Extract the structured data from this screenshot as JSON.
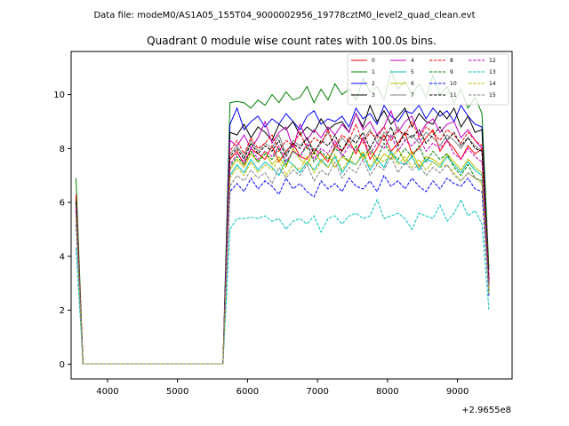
{
  "suptitle": "Data file: modeM0/AS1A05_155T04_9000002956_19778cztM0_level2_quad_clean.evt",
  "chart_data": {
    "type": "line",
    "title": "Quadrant 0 module wise count rates with 100.0s bins.",
    "xlabel": "",
    "ylabel": "",
    "x_offset_label": "+2.9655e8",
    "xlim": [
      3480,
      9780
    ],
    "ylim": [
      -0.55,
      11.6
    ],
    "xticks": [
      4000,
      5000,
      6000,
      7000,
      8000,
      9000
    ],
    "yticks": [
      0,
      2,
      4,
      6,
      8,
      10
    ],
    "legend_position": "top-right",
    "legend_columns": 4,
    "x": [
      3550,
      3650,
      3750,
      3850,
      3950,
      4050,
      4150,
      4250,
      4350,
      4450,
      4550,
      4650,
      4750,
      4850,
      4950,
      5050,
      5150,
      5250,
      5350,
      5450,
      5550,
      5650,
      5750,
      5850,
      5950,
      6050,
      6150,
      6250,
      6350,
      6450,
      6550,
      6650,
      6750,
      6850,
      6950,
      7050,
      7150,
      7250,
      7350,
      7450,
      7550,
      7650,
      7750,
      7850,
      7950,
      8050,
      8150,
      8250,
      8350,
      8450,
      8550,
      8650,
      8750,
      8850,
      8950,
      9050,
      9150,
      9250,
      9350,
      9450
    ],
    "series": [
      {
        "name": "0",
        "color": "#ff0000",
        "dash": false,
        "values": [
          6.2,
          0.01,
          0.01,
          0.01,
          0.01,
          0.01,
          0.01,
          0.01,
          0.01,
          0.01,
          0.01,
          0.01,
          0.01,
          0.01,
          0.01,
          0.01,
          0.01,
          0.01,
          0.01,
          0.01,
          0.01,
          0.01,
          7.6,
          7.9,
          7.4,
          8.0,
          7.8,
          7.6,
          8.1,
          7.5,
          7.9,
          8.2,
          7.7,
          7.6,
          8.0,
          7.8,
          7.5,
          8.1,
          7.9,
          8.3,
          7.8,
          8.4,
          7.6,
          8.0,
          8.5,
          7.9,
          8.2,
          8.6,
          7.8,
          8.0,
          8.4,
          8.7,
          7.9,
          8.3,
          8.0,
          7.6,
          8.1,
          7.8,
          8.0,
          3.2
        ]
      },
      {
        "name": "1",
        "color": "#008000",
        "dash": false,
        "values": [
          6.9,
          0.01,
          0.01,
          0.01,
          0.01,
          0.01,
          0.01,
          0.01,
          0.01,
          0.01,
          0.01,
          0.01,
          0.01,
          0.01,
          0.01,
          0.01,
          0.01,
          0.01,
          0.01,
          0.01,
          0.01,
          0.01,
          9.7,
          9.75,
          9.7,
          9.5,
          9.8,
          9.6,
          10.0,
          9.7,
          10.1,
          9.8,
          9.9,
          10.3,
          9.7,
          10.2,
          9.8,
          10.4,
          10.0,
          10.2,
          9.8,
          10.6,
          10.1,
          10.3,
          9.8,
          10.9,
          10.2,
          10.5,
          10.0,
          10.4,
          9.9,
          10.7,
          10.0,
          10.3,
          9.7,
          10.2,
          9.5,
          9.9,
          9.3,
          3.5
        ]
      },
      {
        "name": "2",
        "color": "#0000ff",
        "dash": false,
        "values": [
          6.0,
          0.01,
          0.01,
          0.01,
          0.01,
          0.01,
          0.01,
          0.01,
          0.01,
          0.01,
          0.01,
          0.01,
          0.01,
          0.01,
          0.01,
          0.01,
          0.01,
          0.01,
          0.01,
          0.01,
          0.01,
          0.01,
          8.9,
          9.5,
          8.7,
          9.0,
          9.2,
          8.8,
          9.1,
          8.9,
          9.3,
          9.0,
          8.7,
          9.2,
          9.4,
          8.9,
          9.1,
          9.0,
          9.2,
          8.8,
          9.5,
          9.1,
          9.3,
          8.9,
          9.6,
          9.2,
          9.0,
          9.4,
          9.3,
          9.6,
          9.1,
          9.5,
          9.2,
          9.4,
          9.0,
          9.6,
          9.2,
          8.9,
          8.8,
          3.0
        ]
      },
      {
        "name": "3",
        "color": "#000000",
        "dash": false,
        "values": [
          6.1,
          0.01,
          0.01,
          0.01,
          0.01,
          0.01,
          0.01,
          0.01,
          0.01,
          0.01,
          0.01,
          0.01,
          0.01,
          0.01,
          0.01,
          0.01,
          0.01,
          0.01,
          0.01,
          0.01,
          0.01,
          0.01,
          8.6,
          8.5,
          8.9,
          8.4,
          8.8,
          8.6,
          8.3,
          8.9,
          8.7,
          9.0,
          8.5,
          8.8,
          8.6,
          9.1,
          8.7,
          8.9,
          9.0,
          8.6,
          9.3,
          8.8,
          9.6,
          9.0,
          9.4,
          8.9,
          9.2,
          9.5,
          8.8,
          9.3,
          9.0,
          8.9,
          9.4,
          9.1,
          9.5,
          8.8,
          9.2,
          8.6,
          8.7,
          3.1
        ]
      },
      {
        "name": "4",
        "color": "#bf00bf",
        "dash": false,
        "values": [
          5.9,
          0.01,
          0.01,
          0.01,
          0.01,
          0.01,
          0.01,
          0.01,
          0.01,
          0.01,
          0.01,
          0.01,
          0.01,
          0.01,
          0.01,
          0.01,
          0.01,
          0.01,
          0.01,
          0.01,
          0.01,
          0.01,
          8.3,
          8.1,
          8.5,
          8.0,
          8.4,
          9.0,
          8.2,
          8.6,
          8.8,
          8.0,
          8.9,
          8.3,
          8.7,
          8.4,
          8.8,
          8.5,
          8.9,
          8.6,
          9.3,
          8.7,
          9.0,
          8.5,
          8.8,
          9.4,
          8.6,
          9.0,
          9.2,
          8.5,
          8.9,
          9.1,
          8.6,
          8.9,
          9.0,
          8.4,
          8.7,
          8.3,
          8.0,
          3.0
        ]
      },
      {
        "name": "5",
        "color": "#00bfbf",
        "dash": false,
        "values": [
          5.6,
          0.01,
          0.01,
          0.01,
          0.01,
          0.01,
          0.01,
          0.01,
          0.01,
          0.01,
          0.01,
          0.01,
          0.01,
          0.01,
          0.01,
          0.01,
          0.01,
          0.01,
          0.01,
          0.01,
          0.01,
          0.01,
          7.0,
          7.4,
          7.1,
          7.6,
          7.2,
          7.5,
          7.3,
          7.0,
          7.6,
          7.4,
          7.1,
          7.5,
          7.2,
          7.6,
          7.3,
          7.7,
          7.1,
          7.5,
          7.4,
          7.8,
          7.2,
          7.6,
          7.3,
          7.9,
          7.5,
          7.4,
          7.7,
          7.2,
          7.6,
          7.5,
          7.3,
          7.7,
          7.4,
          7.1,
          7.5,
          7.2,
          7.0,
          2.6
        ]
      },
      {
        "name": "6",
        "color": "#bfbf00",
        "dash": false,
        "values": [
          5.8,
          0.01,
          0.01,
          0.01,
          0.01,
          0.01,
          0.01,
          0.01,
          0.01,
          0.01,
          0.01,
          0.01,
          0.01,
          0.01,
          0.01,
          0.01,
          0.01,
          0.01,
          0.01,
          0.01,
          0.01,
          0.01,
          7.2,
          7.6,
          7.3,
          7.8,
          7.5,
          7.9,
          7.4,
          7.7,
          7.3,
          8.0,
          7.6,
          7.4,
          7.9,
          7.5,
          7.8,
          7.3,
          7.7,
          7.5,
          8.1,
          7.6,
          7.9,
          7.4,
          7.8,
          7.6,
          8.0,
          7.5,
          7.9,
          7.3,
          7.7,
          7.6,
          7.4,
          7.8,
          7.5,
          7.2,
          7.6,
          7.3,
          7.1,
          2.8
        ]
      },
      {
        "name": "7",
        "color": "#808080",
        "dash": false,
        "values": [
          6.0,
          0.01,
          0.01,
          0.01,
          0.01,
          0.01,
          0.01,
          0.01,
          0.01,
          0.01,
          0.01,
          0.01,
          0.01,
          0.01,
          0.01,
          0.01,
          0.01,
          0.01,
          0.01,
          0.01,
          0.01,
          0.01,
          7.8,
          8.1,
          7.7,
          8.3,
          7.9,
          8.2,
          8.0,
          8.5,
          7.8,
          8.3,
          8.1,
          8.4,
          7.9,
          8.2,
          8.6,
          8.0,
          8.4,
          8.1,
          8.5,
          8.3,
          8.7,
          8.2,
          8.6,
          8.4,
          8.8,
          8.3,
          8.5,
          8.2,
          8.6,
          8.4,
          8.1,
          8.5,
          8.3,
          8.0,
          8.4,
          8.1,
          7.9,
          3.0
        ]
      },
      {
        "name": "8",
        "color": "#ff0000",
        "dash": true,
        "values": [
          6.3,
          0.01,
          0.01,
          0.01,
          0.01,
          0.01,
          0.01,
          0.01,
          0.01,
          0.01,
          0.01,
          0.01,
          0.01,
          0.01,
          0.01,
          0.01,
          0.01,
          0.01,
          0.01,
          0.01,
          0.01,
          0.01,
          7.9,
          8.3,
          7.8,
          8.4,
          8.0,
          8.2,
          8.5,
          7.9,
          8.3,
          8.1,
          8.6,
          8.0,
          8.4,
          8.2,
          8.7,
          8.1,
          8.5,
          8.3,
          8.9,
          8.2,
          8.6,
          8.4,
          8.8,
          8.3,
          8.7,
          8.5,
          9.0,
          8.4,
          8.8,
          8.6,
          8.3,
          8.7,
          8.5,
          8.2,
          8.6,
          8.3,
          8.1,
          3.1
        ]
      },
      {
        "name": "9",
        "color": "#008000",
        "dash": true,
        "values": [
          5.7,
          0.01,
          0.01,
          0.01,
          0.01,
          0.01,
          0.01,
          0.01,
          0.01,
          0.01,
          0.01,
          0.01,
          0.01,
          0.01,
          0.01,
          0.01,
          0.01,
          0.01,
          0.01,
          0.01,
          0.01,
          0.01,
          7.3,
          7.7,
          7.4,
          7.9,
          7.5,
          7.8,
          7.6,
          8.0,
          7.4,
          7.9,
          7.7,
          8.1,
          7.5,
          7.9,
          7.6,
          8.0,
          7.8,
          7.5,
          8.1,
          7.7,
          8.0,
          7.6,
          8.2,
          7.8,
          7.6,
          8.0,
          7.7,
          8.1,
          7.5,
          7.9,
          7.6,
          7.8,
          7.3,
          7.0,
          7.4,
          6.9,
          6.8,
          2.7
        ]
      },
      {
        "name": "10",
        "color": "#0000ff",
        "dash": true,
        "values": [
          5.2,
          0.01,
          0.01,
          0.01,
          0.01,
          0.01,
          0.01,
          0.01,
          0.01,
          0.01,
          0.01,
          0.01,
          0.01,
          0.01,
          0.01,
          0.01,
          0.01,
          0.01,
          0.01,
          0.01,
          0.01,
          0.01,
          6.4,
          6.7,
          6.4,
          6.9,
          6.5,
          6.8,
          6.6,
          6.3,
          6.9,
          6.5,
          6.7,
          6.4,
          6.2,
          6.8,
          6.5,
          6.7,
          6.4,
          6.9,
          6.6,
          6.5,
          6.8,
          6.4,
          7.0,
          6.6,
          6.8,
          6.5,
          6.9,
          6.6,
          6.4,
          6.8,
          6.5,
          6.9,
          6.7,
          6.6,
          6.9,
          6.5,
          6.4,
          2.5
        ]
      },
      {
        "name": "11",
        "color": "#000000",
        "dash": true,
        "values": [
          6.0,
          0.01,
          0.01,
          0.01,
          0.01,
          0.01,
          0.01,
          0.01,
          0.01,
          0.01,
          0.01,
          0.01,
          0.01,
          0.01,
          0.01,
          0.01,
          0.01,
          0.01,
          0.01,
          0.01,
          0.01,
          0.01,
          7.7,
          8.0,
          7.6,
          8.2,
          7.8,
          8.1,
          7.9,
          8.3,
          7.7,
          8.2,
          8.0,
          8.4,
          7.8,
          8.3,
          8.1,
          8.5,
          7.9,
          8.4,
          8.2,
          8.6,
          8.0,
          8.5,
          8.3,
          8.8,
          8.1,
          8.6,
          8.4,
          8.7,
          8.2,
          8.5,
          8.8,
          8.3,
          8.6,
          8.1,
          8.4,
          8.0,
          7.9,
          3.0
        ]
      },
      {
        "name": "12",
        "color": "#bf00bf",
        "dash": true,
        "values": [
          5.8,
          0.01,
          0.01,
          0.01,
          0.01,
          0.01,
          0.01,
          0.01,
          0.01,
          0.01,
          0.01,
          0.01,
          0.01,
          0.01,
          0.01,
          0.01,
          0.01,
          0.01,
          0.01,
          0.01,
          0.01,
          0.01,
          7.4,
          7.8,
          7.5,
          8.0,
          7.6,
          7.9,
          7.7,
          8.1,
          7.5,
          7.9,
          7.7,
          8.2,
          7.6,
          8.0,
          7.8,
          8.3,
          7.7,
          8.1,
          7.9,
          8.4,
          7.8,
          8.2,
          8.0,
          8.5,
          7.9,
          8.3,
          8.1,
          8.4,
          7.9,
          8.2,
          8.0,
          8.3,
          7.8,
          7.6,
          8.0,
          7.7,
          7.5,
          2.9
        ]
      },
      {
        "name": "13",
        "color": "#00bfbf",
        "dash": true,
        "values": [
          4.3,
          0.01,
          0.01,
          0.01,
          0.01,
          0.01,
          0.01,
          0.01,
          0.01,
          0.01,
          0.01,
          0.01,
          0.01,
          0.01,
          0.01,
          0.01,
          0.01,
          0.01,
          0.01,
          0.01,
          0.01,
          0.01,
          5.0,
          5.4,
          5.4,
          5.45,
          5.4,
          5.5,
          5.3,
          5.4,
          5.0,
          5.3,
          5.4,
          5.2,
          5.5,
          4.9,
          5.4,
          5.5,
          5.2,
          5.5,
          5.6,
          5.4,
          5.5,
          6.1,
          5.4,
          5.5,
          5.6,
          5.4,
          5.0,
          5.6,
          5.5,
          5.4,
          5.9,
          5.3,
          5.6,
          6.1,
          5.5,
          5.7,
          5.2,
          2.0
        ]
      },
      {
        "name": "14",
        "color": "#bfbf00",
        "dash": true,
        "values": [
          5.4,
          0.01,
          0.01,
          0.01,
          0.01,
          0.01,
          0.01,
          0.01,
          0.01,
          0.01,
          0.01,
          0.01,
          0.01,
          0.01,
          0.01,
          0.01,
          0.01,
          0.01,
          0.01,
          0.01,
          0.01,
          0.01,
          6.9,
          7.3,
          7.0,
          7.5,
          7.1,
          7.4,
          7.2,
          7.6,
          7.0,
          7.4,
          7.2,
          7.7,
          7.1,
          7.5,
          7.3,
          7.8,
          7.2,
          7.6,
          7.4,
          7.9,
          7.3,
          7.7,
          7.5,
          7.8,
          7.4,
          7.7,
          7.3,
          7.6,
          7.2,
          7.5,
          7.3,
          7.4,
          7.1,
          6.8,
          7.1,
          6.9,
          6.7,
          2.6
        ]
      },
      {
        "name": "15",
        "color": "#808080",
        "dash": true,
        "values": [
          5.5,
          0.01,
          0.01,
          0.01,
          0.01,
          0.01,
          0.01,
          0.01,
          0.01,
          0.01,
          0.01,
          0.01,
          0.01,
          0.01,
          0.01,
          0.01,
          0.01,
          0.01,
          0.01,
          0.01,
          0.01,
          0.01,
          6.6,
          7.0,
          6.8,
          7.2,
          6.9,
          7.1,
          6.7,
          7.3,
          6.9,
          7.2,
          7.0,
          7.4,
          6.8,
          7.2,
          7.0,
          7.5,
          6.9,
          7.3,
          7.1,
          7.6,
          7.0,
          7.4,
          7.2,
          7.7,
          7.1,
          7.5,
          7.2,
          7.4,
          7.0,
          7.3,
          7.1,
          7.4,
          7.0,
          6.8,
          7.1,
          6.9,
          6.8,
          2.6
        ]
      }
    ]
  }
}
